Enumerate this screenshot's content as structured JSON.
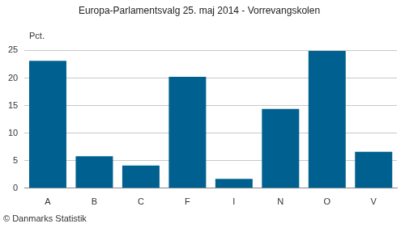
{
  "chart_data": {
    "type": "bar",
    "title": "Europa-Parlamentsvalg 25. maj 2014 - Vorrevangskolen",
    "ylabel": "Pct.",
    "source": "© Danmarks Statistik",
    "categories": [
      "A",
      "B",
      "C",
      "F",
      "I",
      "N",
      "O",
      "V"
    ],
    "values": [
      23.1,
      5.8,
      4.1,
      20.2,
      1.7,
      14.4,
      24.9,
      6.6
    ],
    "color": "#00608f",
    "ylim": [
      0,
      25
    ],
    "yticks": [
      0,
      5,
      10,
      15,
      20,
      25
    ],
    "grid": true
  }
}
